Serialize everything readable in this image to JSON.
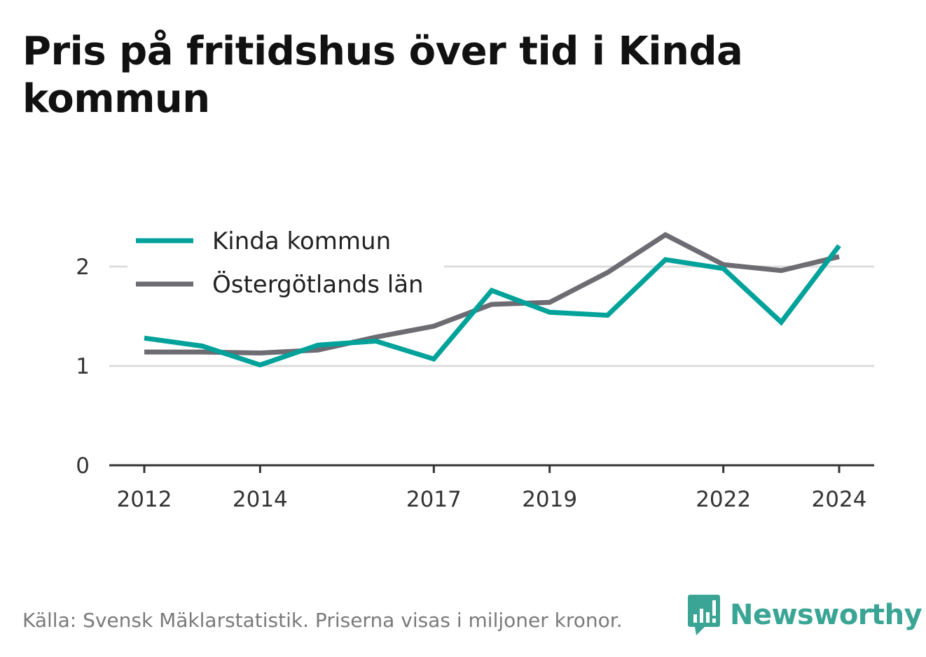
{
  "title": "Pris på fritidshus över tid i Kinda kommun",
  "source": "Källa: Svensk Mäklarstatistik. Priserna visas i miljoner kronor.",
  "brand": {
    "name": "Newsworthy",
    "color": "#3aa595",
    "icon": "bar-chart-speech-bubble-icon"
  },
  "chart_data": {
    "type": "line",
    "title": "Pris på fritidshus över tid i Kinda kommun",
    "xlabel": "",
    "ylabel": "",
    "x": [
      2012,
      2013,
      2014,
      2015,
      2016,
      2017,
      2018,
      2019,
      2020,
      2021,
      2022,
      2023,
      2024
    ],
    "xticks": [
      "2012",
      "2014",
      "2017",
      "2019",
      "2022",
      "2024"
    ],
    "yticks": [
      "0",
      "1",
      "2"
    ],
    "ylim": [
      0,
      2.5
    ],
    "grid": "horizontal",
    "legend_position": "top-left",
    "series": [
      {
        "name": "Kinda kommun",
        "color": "#00a29a",
        "values": [
          1.28,
          1.2,
          1.01,
          1.21,
          1.25,
          1.07,
          1.76,
          1.54,
          1.51,
          2.07,
          1.98,
          1.44,
          2.21
        ]
      },
      {
        "name": "Östergötlands län",
        "color": "#6d6c73",
        "values": [
          1.14,
          1.14,
          1.13,
          1.16,
          1.29,
          1.4,
          1.62,
          1.64,
          1.94,
          2.32,
          2.02,
          1.96,
          2.1
        ]
      }
    ]
  }
}
